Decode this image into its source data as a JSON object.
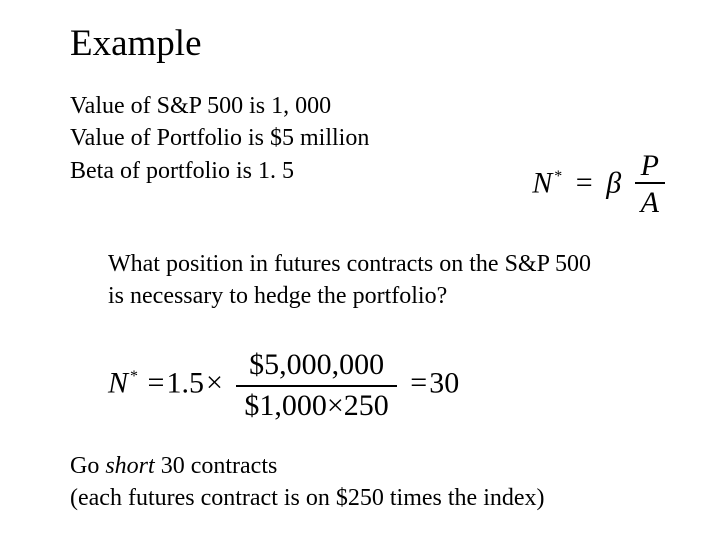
{
  "title": "Example",
  "given": {
    "l1": "Value of S&P 500 is 1, 000",
    "l2": "Value of Portfolio is $5 million",
    "l3": "Beta of portfolio is 1. 5"
  },
  "formula1": {
    "N": "N",
    "star": "*",
    "eq": "=",
    "beta": "β",
    "num": "P",
    "den": "A"
  },
  "question": {
    "l1": "What position in futures contracts on the S&P 500",
    "l2": "is necessary to hedge the portfolio?"
  },
  "formula2": {
    "N": "N",
    "star": "*",
    "eq1": "=",
    "coef": "1.5",
    "times": "×",
    "num": "$5,000,000",
    "den_a": "$1,000",
    "den_times": "×",
    "den_b": "250",
    "eq2": "=",
    "result": "30"
  },
  "answer": {
    "l1_a": "Go ",
    "l1_short": "short",
    "l1_b": " 30 contracts",
    "l2": "(each futures contract is on $250 times the index)"
  }
}
